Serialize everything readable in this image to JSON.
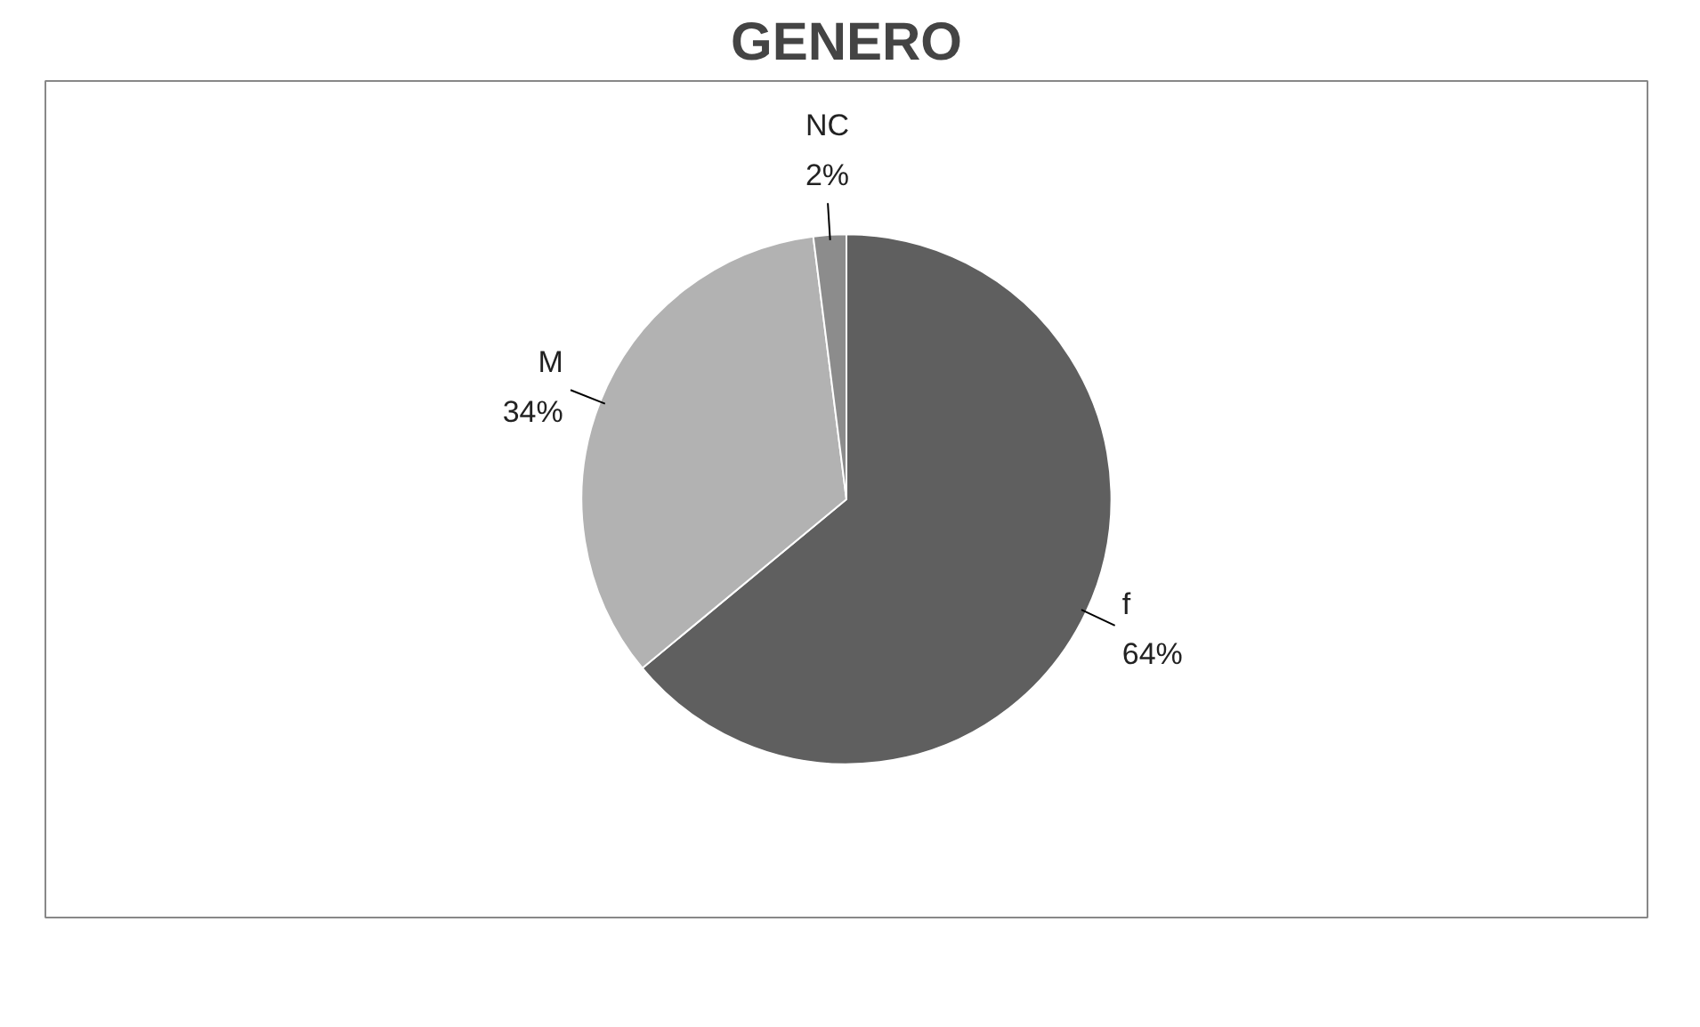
{
  "chart_data": {
    "type": "pie",
    "title": "GENERO",
    "categories": [
      "f",
      "M",
      "NC"
    ],
    "values": [
      64,
      34,
      2
    ],
    "colors": [
      "#5f5f5f",
      "#b2b2b2",
      "#8c8c8c"
    ],
    "value_labels": [
      "64%",
      "34%",
      "2%"
    ]
  }
}
